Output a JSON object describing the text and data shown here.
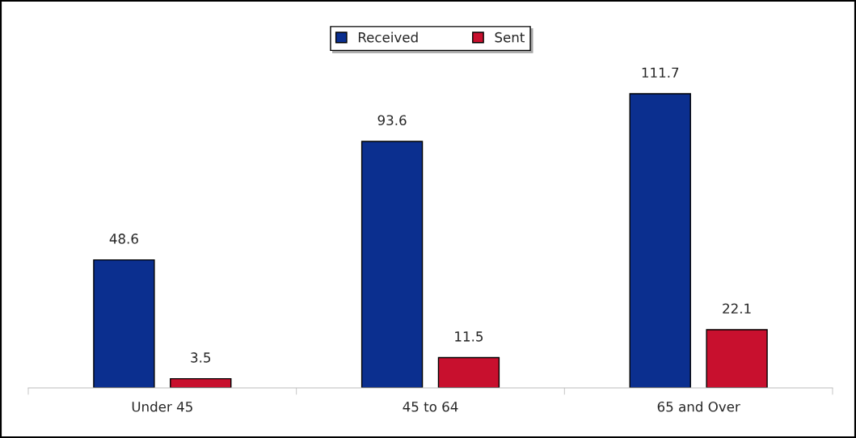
{
  "chart_data": {
    "type": "bar",
    "categories": [
      "Under 45",
      "45 to 64",
      "65 and Over"
    ],
    "series": [
      {
        "name": "Received",
        "color": "#0b2f8f",
        "values": [
          48.6,
          93.6,
          111.7
        ]
      },
      {
        "name": "Sent",
        "color": "#c8102e",
        "values": [
          3.5,
          11.5,
          22.1
        ]
      }
    ],
    "data_labels": true,
    "legend": "top",
    "grid": false
  }
}
